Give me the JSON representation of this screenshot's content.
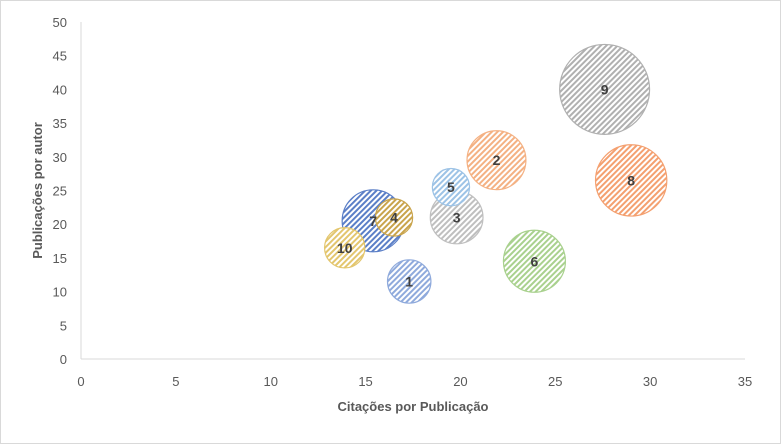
{
  "chart_data": {
    "type": "scatter",
    "subtype": "bubble",
    "title": "",
    "xlabel": "Citações por Publicação",
    "ylabel": "Publicações por autor",
    "xlim": [
      0,
      35
    ],
    "ylim": [
      0,
      50
    ],
    "x_ticks": [
      "0",
      "5",
      "10",
      "15",
      "20",
      "25",
      "30",
      "35"
    ],
    "y_ticks": [
      "0",
      "5",
      "10",
      "15",
      "20",
      "25",
      "30",
      "35",
      "40",
      "45",
      "50"
    ],
    "grid": false,
    "legend": "none",
    "points": [
      {
        "label": "1",
        "x": 17.3,
        "y": 11.5,
        "size": 7,
        "color": "#8faadc"
      },
      {
        "label": "2",
        "x": 21.9,
        "y": 29.5,
        "size": 9.5,
        "color": "#f4b183"
      },
      {
        "label": "3",
        "x": 19.8,
        "y": 21.0,
        "size": 8.5,
        "color": "#bfbfbf"
      },
      {
        "label": "4",
        "x": 16.5,
        "y": 21.0,
        "size": 6,
        "color": "#c9a44c"
      },
      {
        "label": "5",
        "x": 19.5,
        "y": 25.5,
        "size": 6,
        "color": "#9dc3e6"
      },
      {
        "label": "6",
        "x": 23.9,
        "y": 14.5,
        "size": 10,
        "color": "#a9d18e"
      },
      {
        "label": "7",
        "x": 15.4,
        "y": 20.5,
        "size": 10,
        "color": "#5b7fc7"
      },
      {
        "label": "8",
        "x": 29.0,
        "y": 26.5,
        "size": 11.5,
        "color": "#f4a070"
      },
      {
        "label": "9",
        "x": 27.6,
        "y": 40.0,
        "size": 14.5,
        "color": "#b0b0b0"
      },
      {
        "label": "10",
        "x": 13.9,
        "y": 16.5,
        "size": 6.5,
        "color": "#e3c66e"
      }
    ]
  }
}
